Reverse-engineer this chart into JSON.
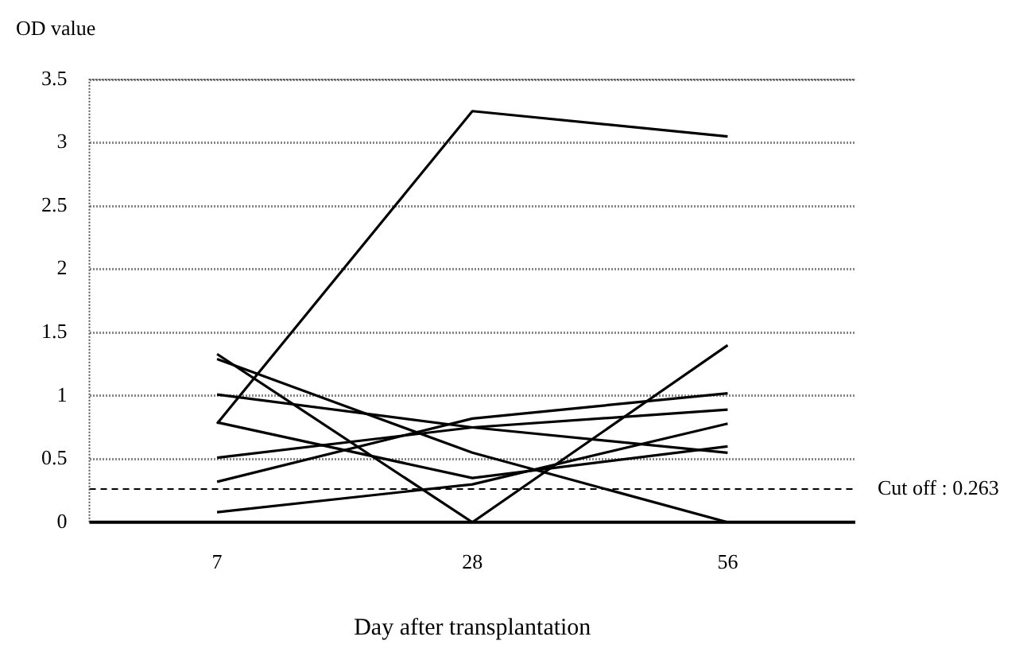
{
  "chart_data": {
    "type": "line",
    "ylabel": "OD value",
    "xlabel": "Day after transplantation",
    "categories": [
      "7",
      "28",
      "56"
    ],
    "series": [
      {
        "color": "#000000",
        "values": [
          0.78,
          3.25,
          3.05
        ]
      },
      {
        "color": "#000000",
        "values": [
          1.33,
          0,
          1.4
        ]
      },
      {
        "color": "#000000",
        "values": [
          1.29,
          0.55,
          0
        ]
      },
      {
        "color": "#000000",
        "values": [
          1.01,
          0.75,
          0.55
        ]
      },
      {
        "color": "#000000",
        "values": [
          0.79,
          0.35,
          0.6
        ]
      },
      {
        "color": "#000000",
        "values": [
          0.51,
          0.75,
          0.89
        ]
      },
      {
        "color": "#000000",
        "values": [
          0.32,
          0.82,
          1.02
        ]
      },
      {
        "color": "#000000",
        "values": [
          0.08,
          0.3,
          0.78
        ]
      }
    ],
    "ylim": [
      0,
      3.5
    ],
    "yticks": [
      0,
      0.5,
      1,
      1.5,
      2,
      2.5,
      3,
      3.5
    ],
    "ref_lines": [
      {
        "axis": "y",
        "value": 0.263,
        "label": "Cut off : 0.263",
        "line_style": "dashed"
      }
    ],
    "grid": "y",
    "legend": false,
    "marker": "none",
    "line_style": "solid"
  }
}
